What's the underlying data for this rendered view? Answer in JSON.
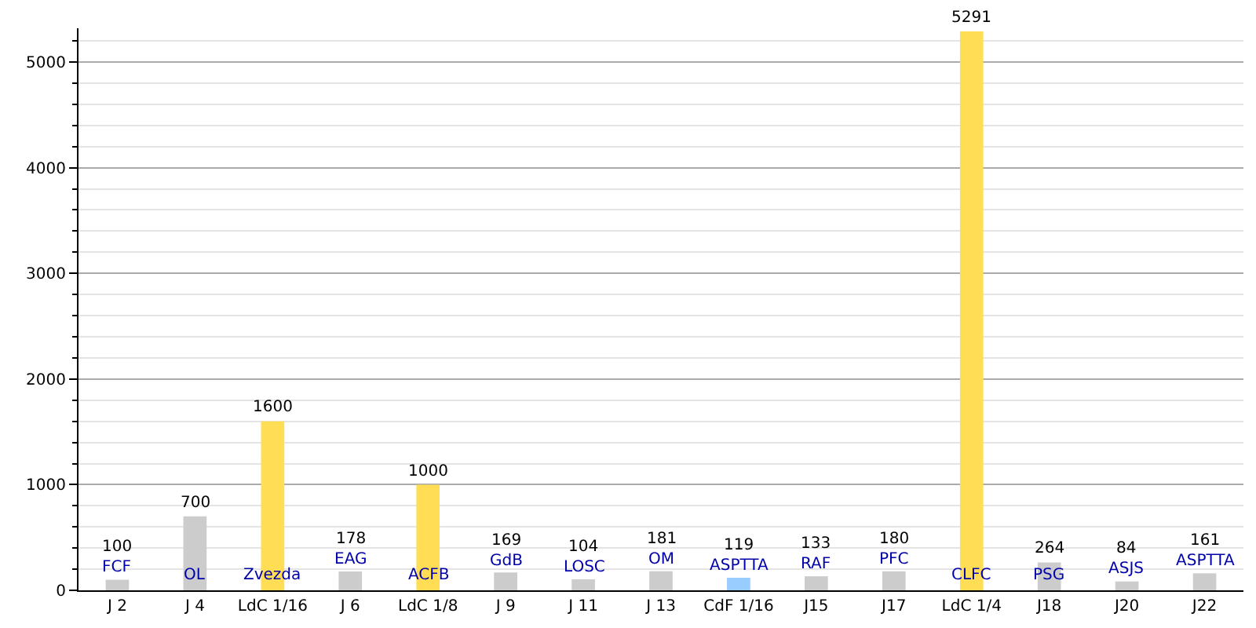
{
  "chart_data": {
    "type": "bar",
    "categories": [
      "J 2",
      "J 4",
      "LdC 1/16",
      "J 6",
      "LdC 1/8",
      "J 9",
      "J 11",
      "J 13",
      "CdF 1/16",
      "J15",
      "J17",
      "LdC 1/4",
      "J18",
      "J20",
      "J22"
    ],
    "values": [
      100,
      700,
      1600,
      178,
      1000,
      169,
      104,
      181,
      119,
      133,
      180,
      5291,
      264,
      84,
      161
    ],
    "colors": [
      "#cccccc",
      "#cccccc",
      "#ffdd55",
      "#cccccc",
      "#ffdd55",
      "#cccccc",
      "#cccccc",
      "#cccccc",
      "#99ccff",
      "#cccccc",
      "#cccccc",
      "#ffdd55",
      "#cccccc",
      "#cccccc",
      "#cccccc"
    ],
    "data_labels": true,
    "annotations": [
      "FCF",
      "OL",
      "Zvezda",
      "EAG",
      "ACFB",
      "GdB",
      "LOSC",
      "OM",
      "ASPTTA",
      "RAF",
      "PFC",
      "CLFC",
      "PSG",
      "ASJS",
      "ASPTTA"
    ],
    "ylim": [
      0,
      5320
    ],
    "yticks": [
      0,
      {
        "value": 200,
        "label": null
      },
      {
        "value": 400,
        "label": null
      },
      {
        "value": 600,
        "label": null
      },
      {
        "value": 800,
        "label": null
      },
      1000,
      {
        "value": 1200,
        "label": null
      },
      {
        "value": 1400,
        "label": null
      },
      {
        "value": 1600,
        "label": null
      },
      {
        "value": 1800,
        "label": null
      },
      2000,
      {
        "value": 2200,
        "label": null
      },
      {
        "value": 2400,
        "label": null
      },
      {
        "value": 2600,
        "label": null
      },
      {
        "value": 2800,
        "label": null
      },
      3000,
      {
        "value": 3200,
        "label": null
      },
      {
        "value": 3400,
        "label": null
      },
      {
        "value": 3600,
        "label": null
      },
      {
        "value": 3800,
        "label": null
      },
      4000,
      {
        "value": 4200,
        "label": null
      },
      {
        "value": 4400,
        "label": null
      },
      {
        "value": 4600,
        "label": null
      },
      {
        "value": 4800,
        "label": null
      },
      5000,
      {
        "value": 5200,
        "label": null
      }
    ],
    "grid": "y"
  }
}
